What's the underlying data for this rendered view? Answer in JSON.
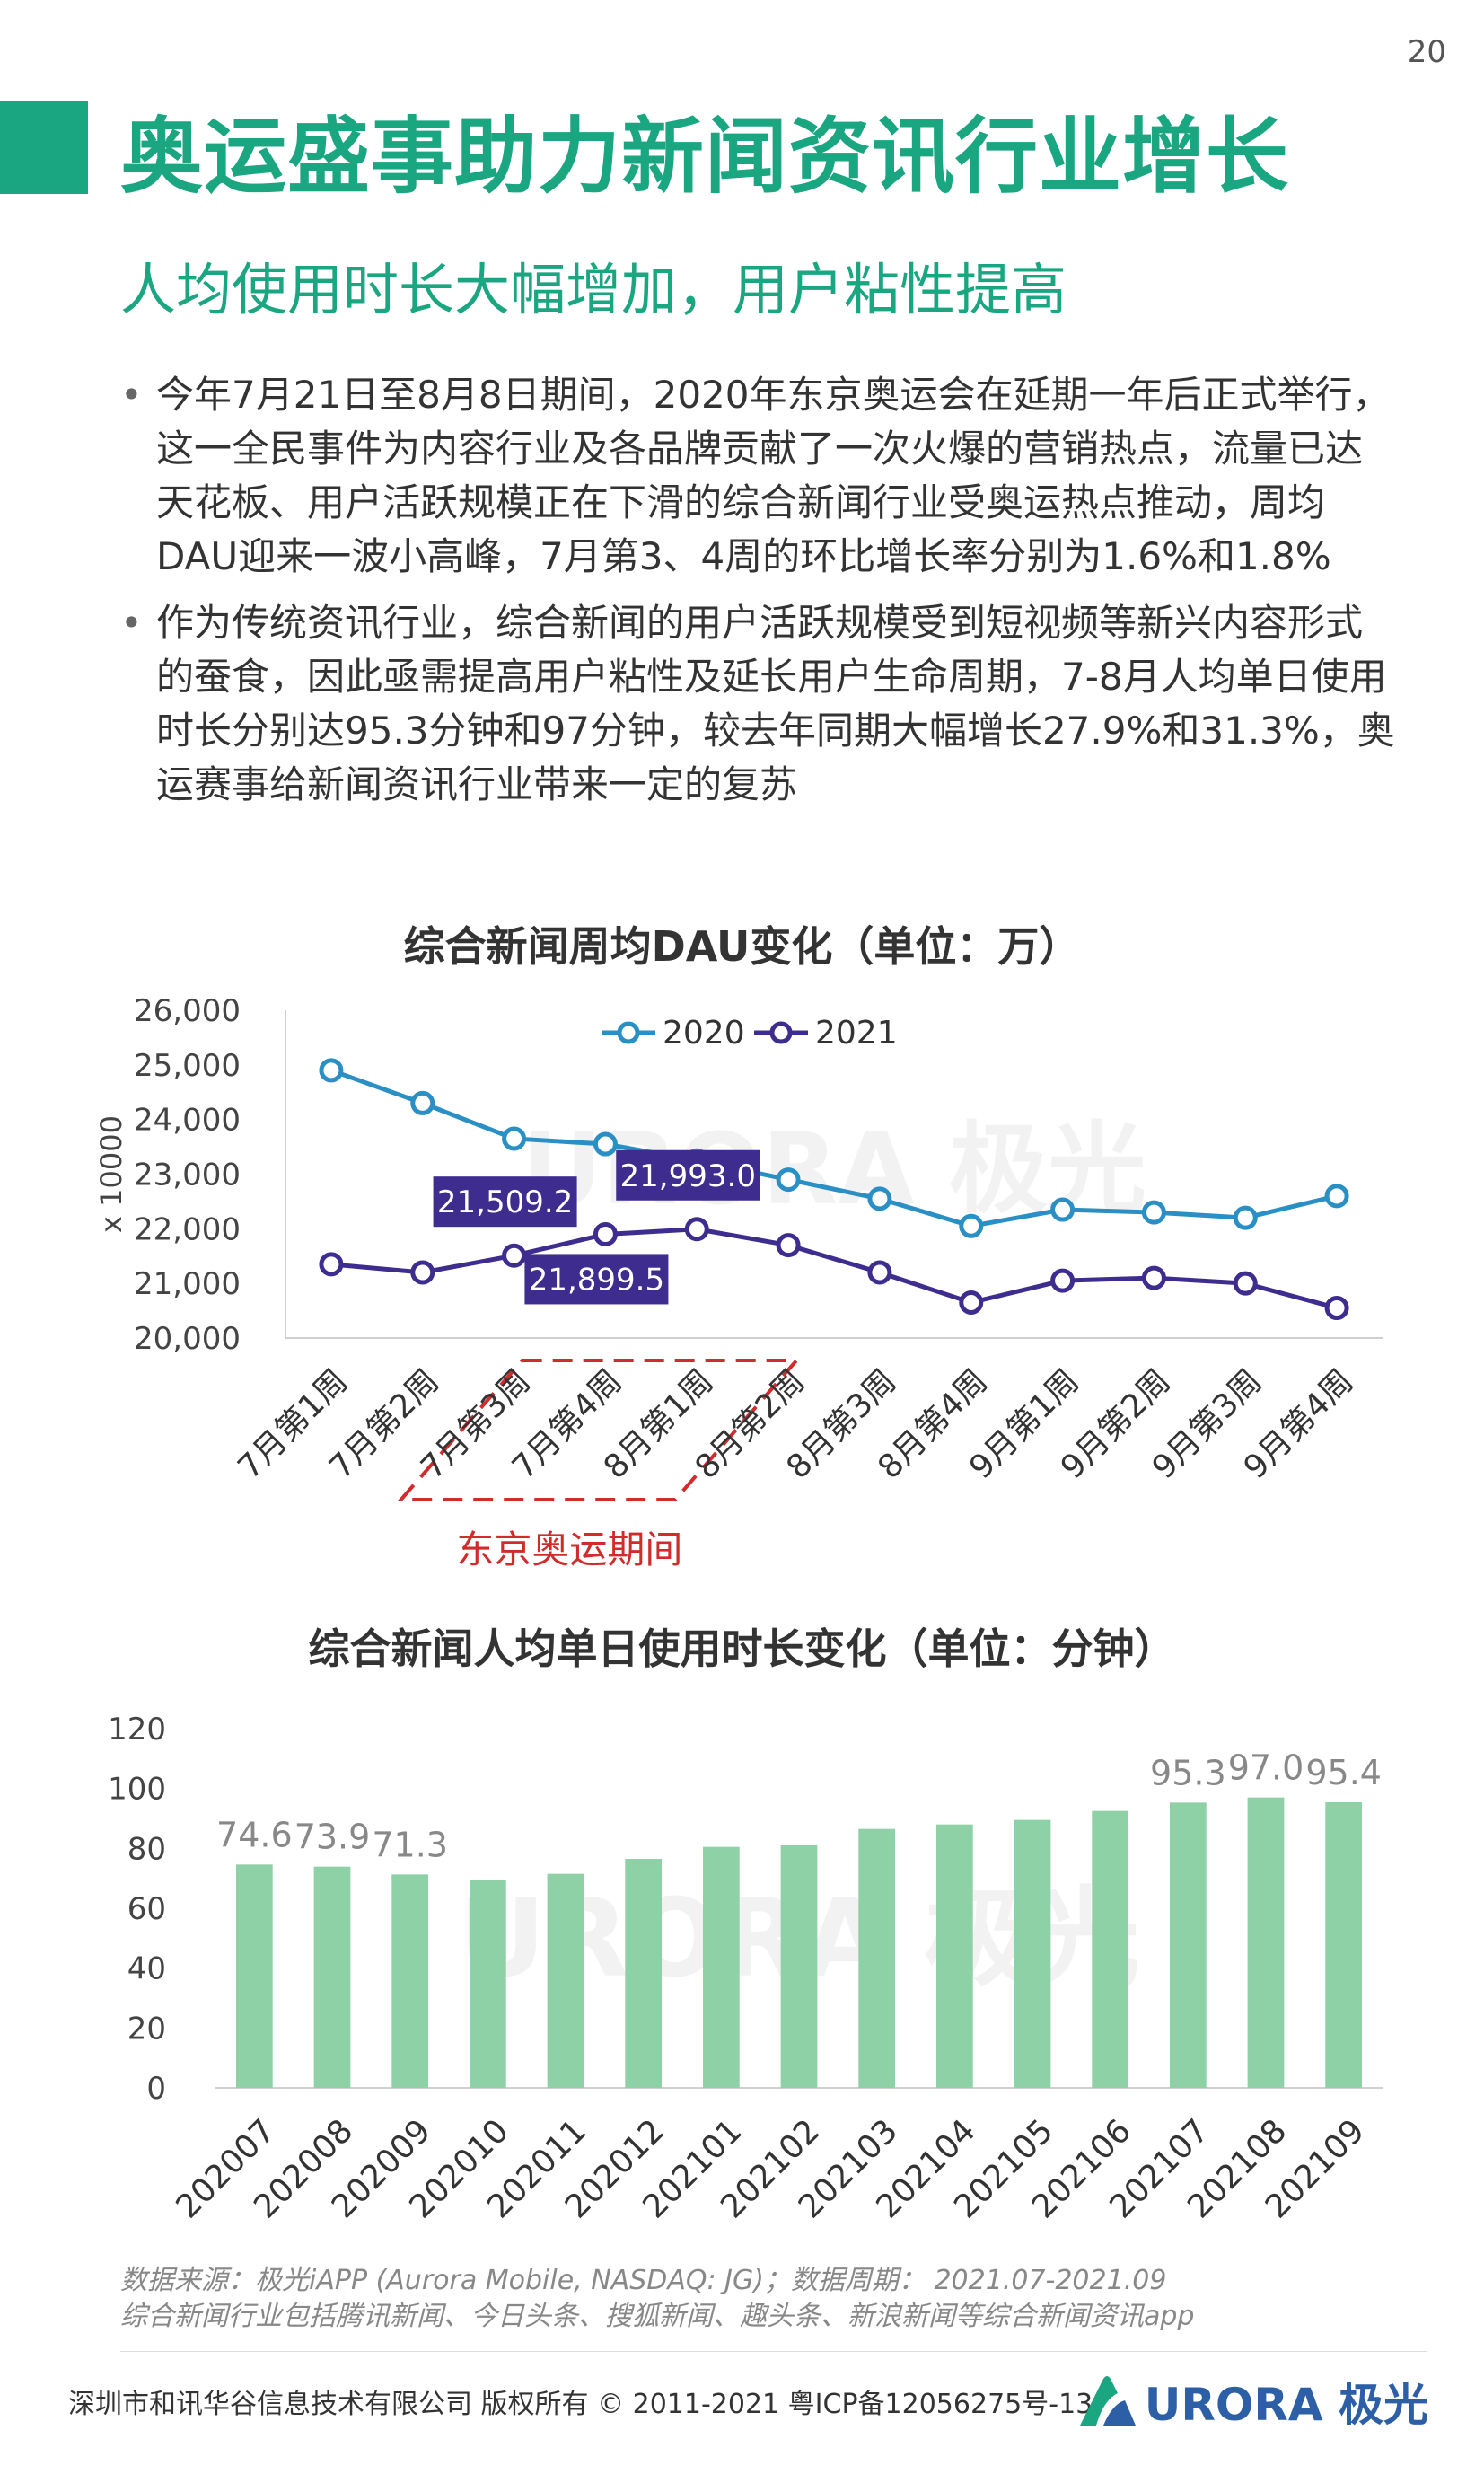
{
  "page_number": "20",
  "title": "奥运盛事助力新闻资讯行业增长",
  "subtitle": "人均使用时长大幅增加，用户粘性提高",
  "bullets": [
    "今年7月21日至8月8日期间，2020年东京奥运会在延期一年后正式举行，这一全民事件为内容行业及各品牌贡献了一次火爆的营销热点，流量已达天花板、用户活跃规模正在下滑的综合新闻行业受奥运热点推动，周均DAU迎来一波小高峰，7月第3、4周的环比增长率分别为1.6%和1.8%",
    "作为传统资讯行业，综合新闻的用户活跃规模受到短视频等新兴内容形式的蚕食，因此亟需提高用户粘性及延长用户生命周期，7-8月人均单日使用时长分别达95.3分钟和97分钟，较去年同期大幅增长27.9%和31.3%，奥运赛事给新闻资讯行业带来一定的复苏"
  ],
  "bullet_symbol": "•",
  "watermark": "URORA 极光",
  "chart_data": [
    {
      "type": "line",
      "title": "综合新闻周均DAU变化（单位：万）",
      "ylabel": "x 10000",
      "ylim": [
        20000,
        26000
      ],
      "yticks": [
        "20,000",
        "21,000",
        "22,000",
        "23,000",
        "24,000",
        "25,000",
        "26,000"
      ],
      "categories": [
        "7月第1周",
        "7月第2周",
        "7月第3周",
        "7月第4周",
        "8月第1周",
        "8月第2周",
        "8月第3周",
        "8月第4周",
        "9月第1周",
        "9月第2周",
        "9月第3周",
        "9月第4周"
      ],
      "series": [
        {
          "name": "2020",
          "color": "#2a8fc4",
          "values": [
            24900,
            24300,
            23650,
            23550,
            23250,
            22900,
            22550,
            22050,
            22350,
            22300,
            22200,
            22600
          ]
        },
        {
          "name": "2021",
          "color": "#3e2c8f",
          "values": [
            21350,
            21200,
            21509.2,
            21899.5,
            21993.0,
            21700,
            21200,
            20650,
            21050,
            21100,
            21000,
            20550
          ]
        }
      ],
      "data_labels": [
        {
          "category": "7月第3周",
          "series": "2021",
          "text": "21,509.2"
        },
        {
          "category": "7月第4周",
          "series": "2021",
          "text": "21,899.5"
        },
        {
          "category": "8月第1周",
          "series": "2021",
          "text": "21,993.0"
        }
      ],
      "label_color": "#3e2c8f",
      "highlight": {
        "label": "东京奥运期间",
        "from": "7月第3周",
        "to": "8月第1周",
        "color": "#d22b2b"
      },
      "legend": "top",
      "grid": false
    },
    {
      "type": "bar",
      "title": "综合新闻人均单日使用时长变化（单位：分钟）",
      "ylim": [
        0,
        120
      ],
      "yticks": [
        "0",
        "20",
        "40",
        "60",
        "80",
        "100",
        "120"
      ],
      "categories": [
        "202007",
        "202008",
        "202009",
        "202010",
        "202011",
        "202012",
        "202101",
        "202102",
        "202103",
        "202104",
        "202105",
        "202106",
        "202107",
        "202108",
        "202109"
      ],
      "values": [
        74.6,
        73.9,
        71.3,
        69.5,
        71.5,
        76.5,
        80.5,
        81.0,
        86.5,
        88.0,
        89.5,
        92.5,
        95.3,
        97.0,
        95.4
      ],
      "data_labels": [
        {
          "category": "202007",
          "text": "74.6"
        },
        {
          "category": "202008",
          "text": "73.9"
        },
        {
          "category": "202009",
          "text": "71.3"
        },
        {
          "category": "202107",
          "text": "95.3"
        },
        {
          "category": "202108",
          "text": "97.0"
        },
        {
          "category": "202109",
          "text": "95.4"
        }
      ],
      "color": "#8fd1a6",
      "grid": false
    }
  ],
  "source": {
    "line1": "数据来源：极光iAPP (Aurora Mobile, NASDAQ: JG)；数据周期： 2021.07-2021.09",
    "line2": "综合新闻行业包括腾讯新闻、今日头条、搜狐新闻、趣头条、新浪新闻等综合新闻资讯app"
  },
  "footer": {
    "copyright": "深圳市和讯华谷信息技术有限公司 版权所有 © 2011-2021 粤ICP备12056275号-13",
    "logo_text": "URORA 极光",
    "logo_icon": "aurora-logo-icon"
  }
}
